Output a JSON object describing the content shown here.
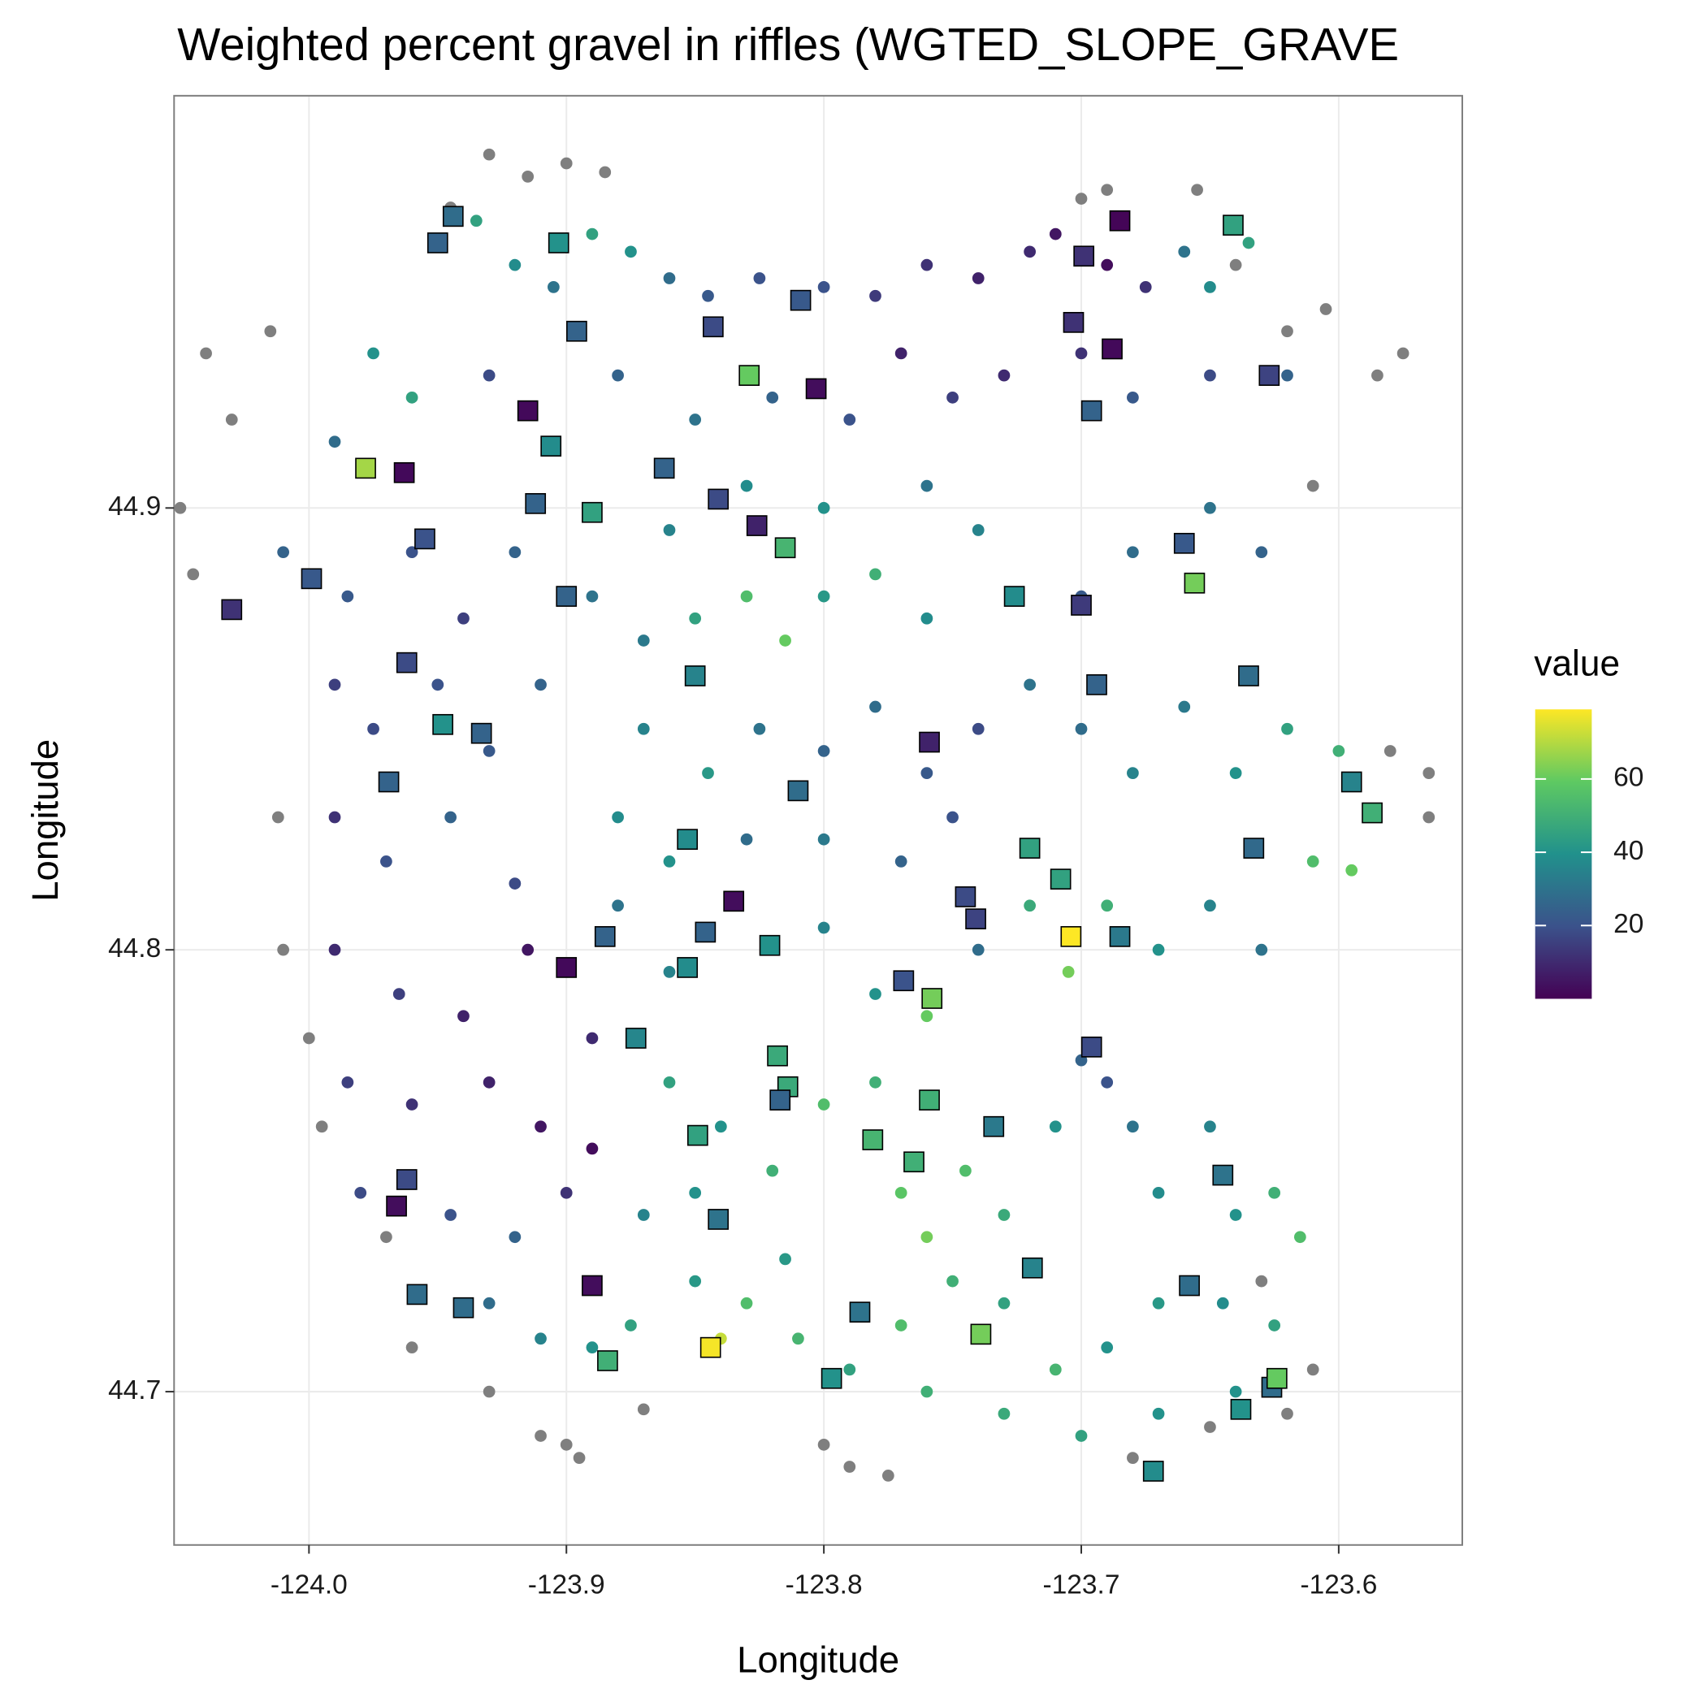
{
  "chart_data": {
    "type": "scatter",
    "title": "Weighted percent gravel in riffles (WGTED_SLOPE_GRAVE",
    "x_label": "Longitude",
    "y_label": "Longitude",
    "legend_title": "value",
    "colormap": "viridis",
    "na_color": "#7f7f7f",
    "colorbar_lim": [
      0,
      79
    ],
    "colorbar_ticks": [
      20,
      40,
      60
    ],
    "xlim": [
      -124.0524,
      -123.552
    ],
    "ylim": [
      44.6653,
      44.9933
    ],
    "xticks": [
      {
        "value": -124,
        "label": "-124.0"
      },
      -123.9,
      -123.8,
      -123.7,
      -123.6
    ],
    "yticks": [
      44.7,
      44.8,
      44.9
    ],
    "grid": true,
    "series": [
      {
        "shape": "circle",
        "x": [
          -123.93,
          -123.915,
          -123.9,
          -123.885,
          -123.945,
          -124.015,
          -124.04,
          -124.03,
          -124.05,
          -124.045,
          -124.012,
          -124.01,
          -124.0,
          -123.995,
          -123.97,
          -123.96,
          -123.93,
          -123.91,
          -123.9,
          -123.895,
          -123.87,
          -123.8,
          -123.79,
          -123.775,
          -123.655,
          -123.64,
          -123.62,
          -123.605,
          -123.585,
          -123.575,
          -123.61,
          -123.58,
          -123.565,
          -123.565,
          -123.65,
          -123.62,
          -123.61,
          -123.7,
          -123.69,
          -123.63,
          -123.68,
          -123.935,
          -123.92,
          -123.905,
          -123.89,
          -123.875,
          -123.86,
          -123.845,
          -123.825,
          -123.8,
          -123.78,
          -123.76,
          -123.74,
          -123.72,
          -123.71,
          -123.69,
          -123.675,
          -123.66,
          -123.65,
          -123.635,
          -123.62,
          -123.65,
          -123.68,
          -123.7,
          -123.73,
          -123.75,
          -123.77,
          -123.79,
          -123.82,
          -123.85,
          -123.88,
          -123.93,
          -123.96,
          -123.975,
          -123.99,
          -124.01,
          -123.985,
          -123.96,
          -123.94,
          -123.92,
          -123.99,
          -123.975,
          -123.95,
          -123.93,
          -123.91,
          -123.99,
          -123.97,
          -123.945,
          -123.92,
          -123.99,
          -123.965,
          -123.94,
          -123.915,
          -123.985,
          -123.96,
          -123.93,
          -123.91,
          -123.89,
          -123.98,
          -123.945,
          -123.92,
          -123.9,
          -123.89,
          -123.93,
          -123.91,
          -123.89,
          -123.875,
          -123.89,
          -123.87,
          -123.85,
          -123.83,
          -123.815,
          -123.8,
          -123.78,
          -123.76,
          -123.87,
          -123.845,
          -123.825,
          -123.8,
          -123.78,
          -123.76,
          -123.74,
          -123.88,
          -123.86,
          -123.83,
          -123.8,
          -123.77,
          -123.75,
          -123.88,
          -123.86,
          -123.82,
          -123.8,
          -123.78,
          -123.76,
          -123.74,
          -123.72,
          -123.705,
          -123.69,
          -123.67,
          -123.65,
          -123.63,
          -123.72,
          -123.7,
          -123.68,
          -123.66,
          -123.64,
          -123.62,
          -123.6,
          -123.61,
          -123.595,
          -123.7,
          -123.68,
          -123.65,
          -123.63,
          -123.74,
          -123.76,
          -123.8,
          -123.83,
          -123.86,
          -123.86,
          -123.84,
          -123.82,
          -123.8,
          -123.78,
          -123.77,
          -123.76,
          -123.745,
          -123.73,
          -123.71,
          -123.7,
          -123.69,
          -123.68,
          -123.67,
          -123.65,
          -123.64,
          -123.625,
          -123.615,
          -123.625,
          -123.645,
          -123.67,
          -123.69,
          -123.71,
          -123.73,
          -123.75,
          -123.77,
          -123.79,
          -123.81,
          -123.83,
          -123.85,
          -123.84,
          -123.87,
          -123.85,
          -123.815,
          -123.76,
          -123.73,
          -123.7,
          -123.67,
          -123.64
        ],
        "y": [
          44.98,
          44.975,
          44.978,
          44.976,
          44.968,
          44.94,
          44.935,
          44.92,
          44.9,
          44.885,
          44.83,
          44.8,
          44.78,
          44.76,
          44.735,
          44.71,
          44.7,
          44.69,
          44.688,
          44.685,
          44.696,
          44.688,
          44.683,
          44.681,
          44.972,
          44.955,
          44.94,
          44.945,
          44.93,
          44.935,
          44.905,
          44.845,
          44.84,
          44.83,
          44.692,
          44.695,
          44.705,
          44.97,
          44.972,
          44.725,
          44.685,
          44.965,
          44.955,
          44.95,
          44.962,
          44.958,
          44.952,
          44.948,
          44.952,
          44.95,
          44.948,
          44.955,
          44.952,
          44.958,
          44.962,
          44.955,
          44.95,
          44.958,
          44.95,
          44.96,
          44.93,
          44.93,
          44.925,
          44.935,
          44.93,
          44.925,
          44.935,
          44.92,
          44.925,
          44.92,
          44.93,
          44.93,
          44.925,
          44.935,
          44.915,
          44.89,
          44.88,
          44.89,
          44.875,
          44.89,
          44.86,
          44.85,
          44.86,
          44.845,
          44.86,
          44.83,
          44.82,
          44.83,
          44.815,
          44.8,
          44.79,
          44.785,
          44.8,
          44.77,
          44.765,
          44.77,
          44.76,
          44.78,
          44.745,
          44.74,
          44.735,
          44.745,
          44.755,
          44.72,
          44.712,
          44.71,
          44.715,
          44.88,
          44.87,
          44.875,
          44.88,
          44.87,
          44.88,
          44.885,
          44.875,
          44.85,
          44.84,
          44.85,
          44.845,
          44.855,
          44.84,
          44.85,
          44.83,
          44.82,
          44.825,
          44.825,
          44.82,
          44.83,
          44.81,
          44.795,
          44.8,
          44.805,
          44.79,
          44.785,
          44.8,
          44.81,
          44.795,
          44.81,
          44.8,
          44.81,
          44.8,
          44.86,
          44.85,
          44.84,
          44.855,
          44.84,
          44.85,
          44.845,
          44.82,
          44.818,
          44.88,
          44.89,
          44.9,
          44.89,
          44.895,
          44.905,
          44.9,
          44.905,
          44.895,
          44.77,
          44.76,
          44.75,
          44.765,
          44.77,
          44.745,
          44.735,
          44.75,
          44.74,
          44.76,
          44.775,
          44.77,
          44.76,
          44.745,
          44.76,
          44.74,
          44.745,
          44.735,
          44.715,
          44.72,
          44.72,
          44.71,
          44.705,
          44.72,
          44.725,
          44.715,
          44.705,
          44.712,
          44.72,
          44.725,
          44.712,
          44.74,
          44.745,
          44.73,
          44.7,
          44.695,
          44.69,
          44.695,
          44.7
        ],
        "values": [
          null,
          null,
          null,
          null,
          null,
          null,
          null,
          null,
          null,
          null,
          null,
          null,
          null,
          null,
          null,
          null,
          null,
          null,
          null,
          null,
          null,
          null,
          null,
          null,
          null,
          null,
          null,
          null,
          null,
          null,
          null,
          null,
          null,
          null,
          null,
          null,
          null,
          null,
          null,
          null,
          null,
          45,
          38,
          30,
          45,
          40,
          28,
          22,
          20,
          20,
          14,
          12,
          8,
          10,
          5,
          3,
          12,
          30,
          38,
          45,
          25,
          18,
          22,
          12,
          10,
          15,
          8,
          20,
          25,
          30,
          25,
          18,
          45,
          40,
          28,
          25,
          22,
          20,
          15,
          25,
          15,
          18,
          20,
          22,
          25,
          12,
          20,
          25,
          18,
          10,
          15,
          8,
          5,
          15,
          12,
          8,
          5,
          10,
          18,
          20,
          25,
          12,
          3,
          28,
          35,
          40,
          45,
          30,
          32,
          45,
          55,
          60,
          42,
          50,
          38,
          35,
          42,
          30,
          25,
          28,
          22,
          18,
          38,
          40,
          28,
          32,
          25,
          20,
          30,
          35,
          45,
          35,
          40,
          60,
          28,
          48,
          62,
          50,
          40,
          35,
          30,
          30,
          28,
          35,
          32,
          40,
          45,
          50,
          55,
          60,
          22,
          28,
          30,
          25,
          35,
          30,
          40,
          38,
          35,
          45,
          40,
          50,
          55,
          50,
          58,
          62,
          55,
          48,
          40,
          25,
          20,
          30,
          38,
          35,
          40,
          50,
          55,
          45,
          38,
          42,
          40,
          52,
          45,
          50,
          55,
          45,
          52,
          55,
          42,
          72,
          35,
          40,
          42,
          50,
          48,
          45,
          40,
          40
        ]
      },
      {
        "shape": "square",
        "x": [
          -123.944,
          -123.95,
          -123.903,
          -123.896,
          -123.843,
          -123.809,
          -123.829,
          -123.803,
          -123.915,
          -123.906,
          -123.978,
          -123.963,
          -123.862,
          -123.841,
          -123.912,
          -123.89,
          -123.826,
          -123.815,
          -123.955,
          -123.999,
          -124.03,
          -123.9,
          -123.685,
          -123.641,
          -123.699,
          -123.703,
          -123.688,
          -123.627,
          -123.696,
          -123.66,
          -123.656,
          -123.726,
          -123.7,
          -123.962,
          -123.85,
          -123.694,
          -123.635,
          -123.948,
          -123.933,
          -123.759,
          -123.969,
          -123.81,
          -123.595,
          -123.587,
          -123.853,
          -123.72,
          -123.633,
          -123.708,
          -123.835,
          -123.745,
          -123.741,
          -123.846,
          -123.885,
          -123.704,
          -123.685,
          -123.821,
          -123.9,
          -123.853,
          -123.769,
          -123.758,
          -123.873,
          -123.696,
          -123.818,
          -123.814,
          -123.817,
          -123.759,
          -123.734,
          -123.849,
          -123.781,
          -123.765,
          -123.645,
          -123.962,
          -123.966,
          -123.841,
          -123.719,
          -123.89,
          -123.658,
          -123.958,
          -123.94,
          -123.786,
          -123.739,
          -123.844,
          -123.884,
          -123.797,
          -123.626,
          -123.624,
          -123.638,
          -123.672
        ],
        "y": [
          44.966,
          44.96,
          44.96,
          44.94,
          44.941,
          44.947,
          44.93,
          44.927,
          44.922,
          44.914,
          44.909,
          44.908,
          44.909,
          44.902,
          44.901,
          44.899,
          44.896,
          44.891,
          44.893,
          44.884,
          44.877,
          44.88,
          44.965,
          44.964,
          44.957,
          44.942,
          44.936,
          44.93,
          44.922,
          44.892,
          44.883,
          44.88,
          44.878,
          44.865,
          44.862,
          44.86,
          44.862,
          44.851,
          44.849,
          44.847,
          44.838,
          44.836,
          44.838,
          44.831,
          44.825,
          44.823,
          44.823,
          44.816,
          44.811,
          44.812,
          44.807,
          44.804,
          44.803,
          44.803,
          44.803,
          44.801,
          44.796,
          44.796,
          44.793,
          44.789,
          44.78,
          44.778,
          44.776,
          44.769,
          44.766,
          44.766,
          44.76,
          44.758,
          44.757,
          44.752,
          44.749,
          44.748,
          44.742,
          44.739,
          44.728,
          44.724,
          44.724,
          44.722,
          44.719,
          44.718,
          44.713,
          44.71,
          44.707,
          44.703,
          44.701,
          44.703,
          44.696,
          44.682
        ],
        "values": [
          28,
          25,
          40,
          25,
          18,
          22,
          60,
          3,
          2,
          38,
          68,
          2,
          25,
          18,
          25,
          45,
          8,
          52,
          20,
          22,
          12,
          25,
          1,
          45,
          12,
          12,
          2,
          16,
          25,
          22,
          62,
          38,
          14,
          18,
          35,
          25,
          28,
          40,
          25,
          8,
          25,
          28,
          35,
          50,
          38,
          45,
          27,
          45,
          3,
          18,
          16,
          25,
          25,
          79,
          32,
          40,
          2,
          38,
          20,
          62,
          36,
          18,
          48,
          48,
          25,
          50,
          32,
          45,
          52,
          50,
          30,
          18,
          3,
          30,
          35,
          3,
          28,
          28,
          28,
          30,
          62,
          78,
          50,
          40,
          28,
          60,
          40,
          38
        ]
      }
    ]
  }
}
